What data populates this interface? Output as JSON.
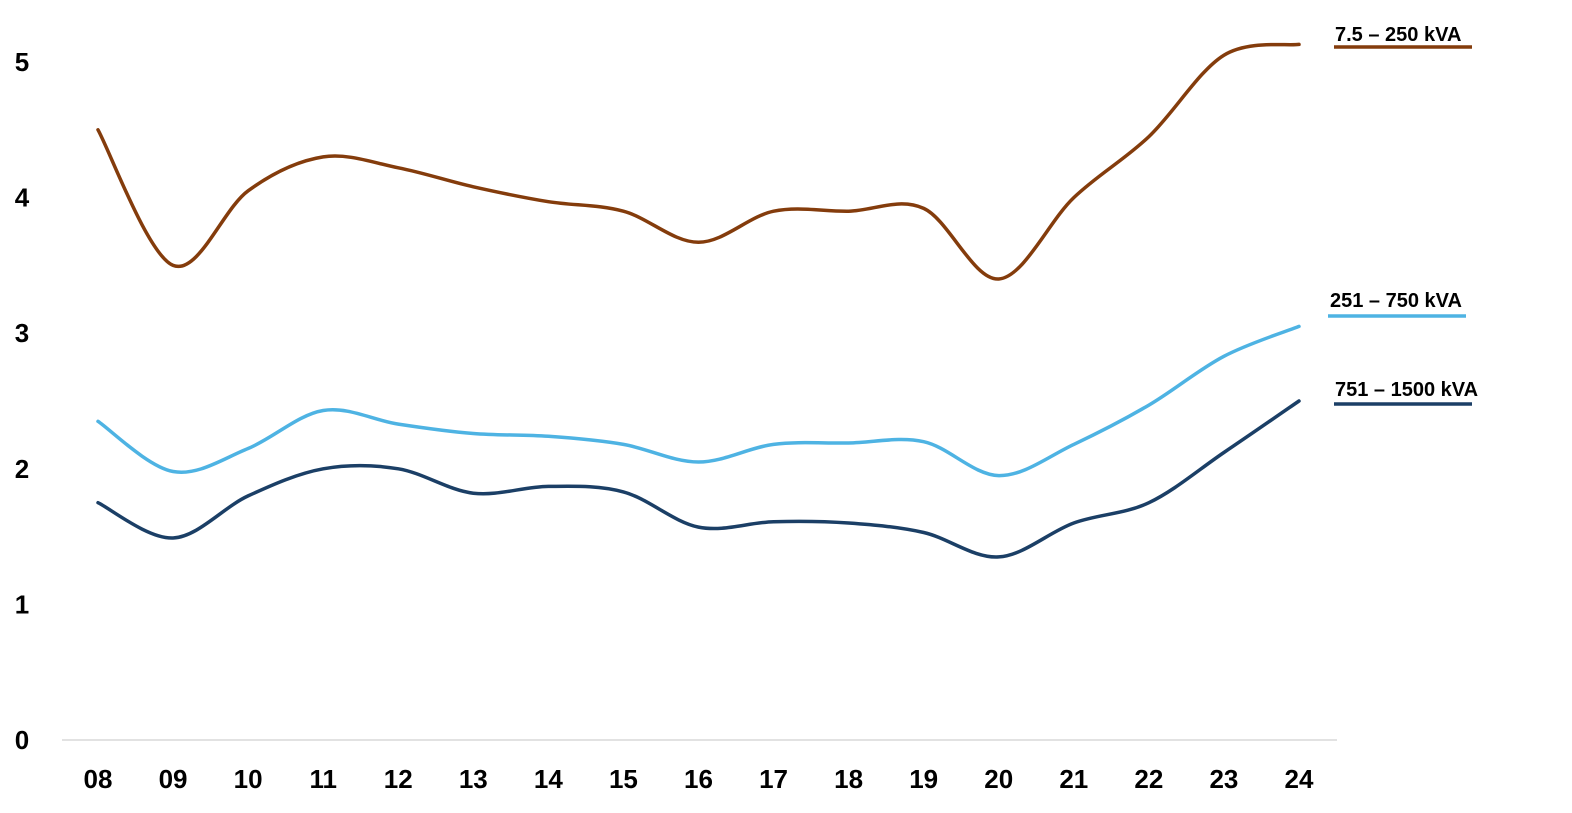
{
  "chart_data": {
    "type": "line",
    "title": "",
    "xlabel": "",
    "ylabel": "",
    "categories": [
      "08",
      "09",
      "10",
      "11",
      "12",
      "13",
      "14",
      "15",
      "16",
      "17",
      "18",
      "19",
      "20",
      "21",
      "22",
      "23",
      "24"
    ],
    "ylim": [
      0,
      5
    ],
    "yticks": [
      "0",
      "1",
      "2",
      "3",
      "4",
      "5"
    ],
    "grid": false,
    "legend": "right, labels at line ends",
    "series": [
      {
        "name": "7.5 – 250 kVA",
        "color": "#843C0C",
        "values": [
          4.5,
          3.5,
          4.05,
          4.3,
          4.22,
          4.08,
          3.97,
          3.9,
          3.67,
          3.9,
          3.9,
          3.92,
          3.4,
          4.0,
          4.45,
          5.05,
          5.13
        ]
      },
      {
        "name": "251 – 750 kVA",
        "color": "#4EB3E3",
        "values": [
          2.35,
          1.98,
          2.15,
          2.43,
          2.33,
          2.26,
          2.24,
          2.18,
          2.05,
          2.18,
          2.19,
          2.2,
          1.95,
          2.18,
          2.47,
          2.83,
          3.05
        ]
      },
      {
        "name": "751 – 1500 kVA",
        "color": "#1B3F66",
        "values": [
          1.75,
          1.49,
          1.8,
          2.0,
          2.0,
          1.82,
          1.87,
          1.83,
          1.57,
          1.61,
          1.6,
          1.53,
          1.35,
          1.6,
          1.75,
          2.12,
          2.5
        ]
      }
    ]
  }
}
